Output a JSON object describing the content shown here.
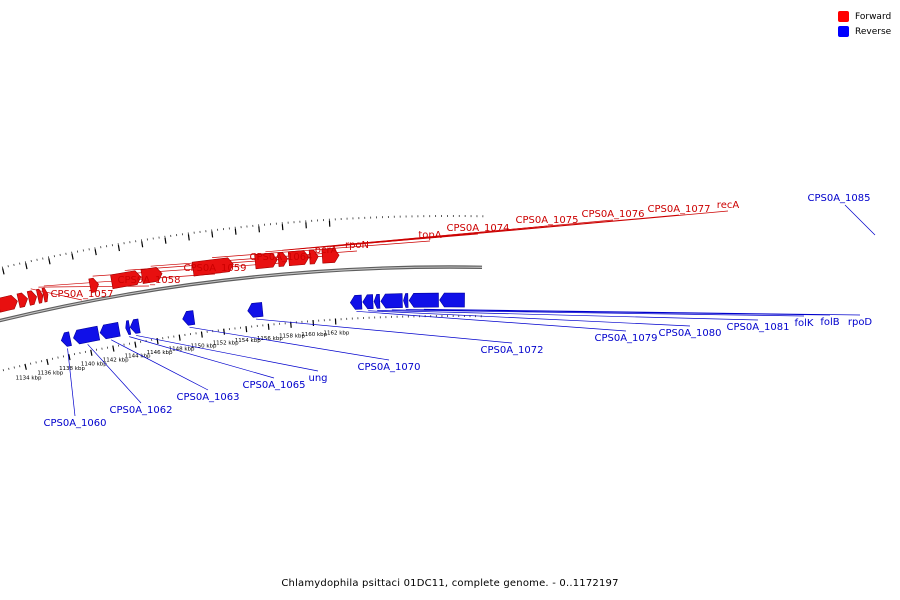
{
  "legend": [
    {
      "label": "Forward",
      "color": "#ff0000"
    },
    {
      "label": "Reverse",
      "color": "#0000ff"
    }
  ],
  "footer": "Chlamydophila psittaci 01DC11, complete genome. - 0..1172197",
  "colors": {
    "forward": "#e81010",
    "reverse": "#1010e8",
    "forward_label": "#cc0000",
    "reverse_label": "#0000cc",
    "backbone": "#8a8a8a"
  },
  "ticks": [
    {
      "kbp": 1134,
      "label": "1134 kbp"
    },
    {
      "kbp": 1136,
      "label": "1136 kbp"
    },
    {
      "kbp": 1138,
      "label": "1138 kbp"
    },
    {
      "kbp": 1140,
      "label": "1140 kbp"
    },
    {
      "kbp": 1142,
      "label": "1142 kbp"
    },
    {
      "kbp": 1144,
      "label": "1144 kbp"
    },
    {
      "kbp": 1146,
      "label": "1146 kbp"
    },
    {
      "kbp": 1148,
      "label": "1148 kbp"
    },
    {
      "kbp": 1150,
      "label": "1150 kbp"
    },
    {
      "kbp": 1152,
      "label": "1152 kbp"
    },
    {
      "kbp": 1154,
      "label": "1154 kbp"
    },
    {
      "kbp": 1156,
      "label": "1156 kbp"
    },
    {
      "kbp": 1158,
      "label": "1158 kbp"
    },
    {
      "kbp": 1160,
      "label": "1160 kbp"
    },
    {
      "kbp": 1162,
      "label": "1162 kbp"
    }
  ],
  "genes": [
    {
      "name": "",
      "strand": "+",
      "start": 1132.3,
      "end": 1132.85
    },
    {
      "name": "",
      "strand": "+",
      "start": 1132.95,
      "end": 1134.6
    },
    {
      "name": "",
      "strand": "+",
      "start": 1134.7,
      "end": 1135.5
    },
    {
      "name": "CPS0A_1057",
      "strand": "+",
      "start": 1135.6,
      "end": 1136.3
    },
    {
      "name": "CPS0A_1058",
      "strand": "+",
      "start": 1136.4,
      "end": 1136.85
    },
    {
      "name": "CPS0A_1059",
      "strand": "+",
      "start": 1136.9,
      "end": 1137.3
    },
    {
      "name": "CPS0A_1064",
      "strand": "+",
      "start": 1141.0,
      "end": 1141.75
    },
    {
      "name": "pcrA",
      "strand": "+",
      "start": 1142.9,
      "end": 1145.45
    },
    {
      "name": "rpoN",
      "strand": "+",
      "start": 1145.55,
      "end": 1147.3
    },
    {
      "name": "topA",
      "strand": "+",
      "start": 1150.0,
      "end": 1153.5
    },
    {
      "name": "CPS0A_1074",
      "strand": "+",
      "start": 1155.4,
      "end": 1157.3
    },
    {
      "name": "CPS0A_1075",
      "strand": "+",
      "start": 1157.4,
      "end": 1158.2
    },
    {
      "name": "CPS0A_1076",
      "strand": "+",
      "start": 1158.3,
      "end": 1160.05
    },
    {
      "name": "CPS0A_1077",
      "strand": "+",
      "start": 1160.1,
      "end": 1160.85
    },
    {
      "name": "recA",
      "strand": "+",
      "start": 1161.2,
      "end": 1162.65
    },
    {
      "name": "CPS0A_1060",
      "strand": "-",
      "start": 1137.6,
      "end": 1138.4
    },
    {
      "name": "CPS0A_1062",
      "strand": "-",
      "start": 1138.7,
      "end": 1140.95
    },
    {
      "name": "CPS0A_1063",
      "strand": "-",
      "start": 1141.1,
      "end": 1142.8
    },
    {
      "name": "CPS0A_1065",
      "strand": "-",
      "start": 1143.4,
      "end": 1143.75
    },
    {
      "name": "ung",
      "strand": "-",
      "start": 1143.8,
      "end": 1144.6
    },
    {
      "name": "CPS0A_1070",
      "strand": "-",
      "start": 1148.5,
      "end": 1149.5
    },
    {
      "name": "CPS0A_1072",
      "strand": "-",
      "start": 1154.3,
      "end": 1155.6
    },
    {
      "name": "CPS0A_1079",
      "strand": "-",
      "start": 1163.4,
      "end": 1164.4
    },
    {
      "name": "CPS0A_1080",
      "strand": "-",
      "start": 1164.5,
      "end": 1165.4
    },
    {
      "name": "CPS0A_1081",
      "strand": "-",
      "start": 1165.5,
      "end": 1166.0
    },
    {
      "name": "folK",
      "strand": "-",
      "start": 1166.1,
      "end": 1168.0
    },
    {
      "name": "folB",
      "strand": "-",
      "start": 1168.1,
      "end": 1168.5
    },
    {
      "name": "rpoD",
      "strand": "-",
      "start": 1168.6,
      "end": 1171.2
    },
    {
      "name": "",
      "strand": "-",
      "start": 1171.3,
      "end": 1173.5
    }
  ]
}
